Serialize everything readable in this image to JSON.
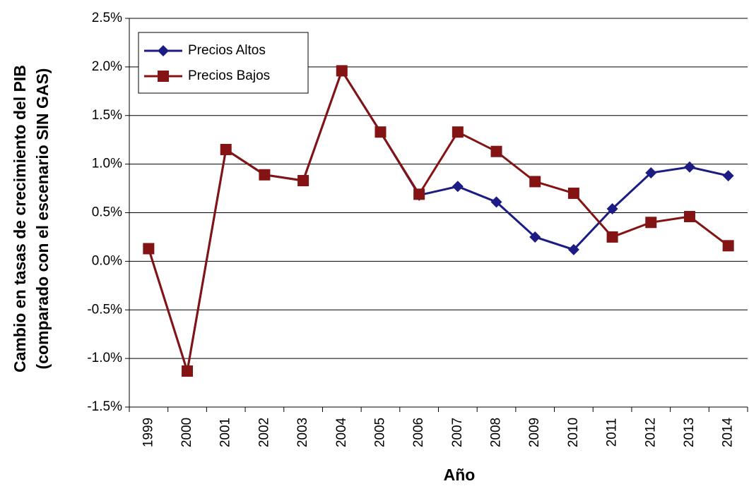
{
  "chart_data": {
    "type": "line",
    "y_label": [
      "Cambio en tasas de crecimiento del PIB",
      "(comparado con el escenario SIN GAS)"
    ],
    "x_label": "Año",
    "categories": [
      "1999",
      "2000",
      "2001",
      "2002",
      "2003",
      "2004",
      "2005",
      "2006",
      "2007",
      "2008",
      "2009",
      "2010",
      "2011",
      "2012",
      "2013",
      "2014"
    ],
    "series": [
      {
        "name": "Precios Altos",
        "color": "#1c1c84",
        "marker": "diamond",
        "values": [
          0.13,
          -1.13,
          1.15,
          0.89,
          0.83,
          1.96,
          1.33,
          0.68,
          0.77,
          0.61,
          0.25,
          0.12,
          0.54,
          0.91,
          0.97,
          0.88
        ]
      },
      {
        "name": "Precios Bajos",
        "color": "#841414",
        "marker": "square",
        "values": [
          0.13,
          -1.13,
          1.15,
          0.89,
          0.83,
          1.96,
          1.33,
          0.69,
          1.33,
          1.13,
          0.82,
          0.7,
          0.25,
          0.4,
          0.46,
          0.16
        ]
      }
    ],
    "ylim": [
      -1.5,
      2.5
    ],
    "yticks": [
      {
        "value": -1.5,
        "label": "-1.5%"
      },
      {
        "value": -1.0,
        "label": "-1.0%"
      },
      {
        "value": -0.5,
        "label": "-0.5%"
      },
      {
        "value": 0.0,
        "label": "0.0%"
      },
      {
        "value": 0.5,
        "label": "0.5%"
      },
      {
        "value": 1.0,
        "label": "1.0%"
      },
      {
        "value": 1.5,
        "label": "1.5%"
      },
      {
        "value": 2.0,
        "label": "2.0%"
      },
      {
        "value": 2.5,
        "label": "2.5%"
      }
    ],
    "grid": true,
    "legend": "upper-left"
  }
}
